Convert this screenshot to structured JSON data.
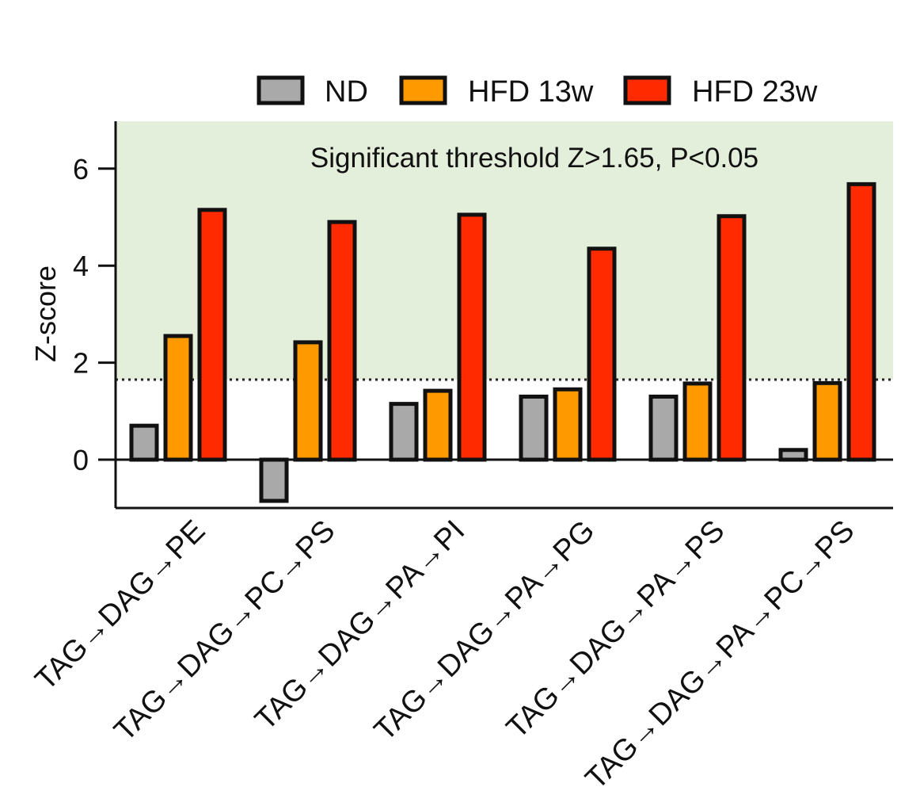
{
  "chart_data": {
    "type": "bar",
    "title": "",
    "xlabel": "",
    "ylabel": "Z-score",
    "ylim": [
      -1,
      7
    ],
    "yticks": [
      0,
      2,
      4,
      6
    ],
    "grid": false,
    "legend_position": "top",
    "categories": [
      "TAG→DAG→PE",
      "TAG→DAG→PC→PS",
      "TAG→DAG→PA→PI",
      "TAG→DAG→PA→PG",
      "TAG→DAG→PA→PS",
      "TAG→DAG→PA→PC→PS"
    ],
    "series": [
      {
        "name": "ND",
        "color": "#a9a9a9",
        "values": [
          0.7,
          -0.85,
          1.15,
          1.3,
          1.3,
          0.2
        ]
      },
      {
        "name": "HFD 13w",
        "color": "#ff9900",
        "values": [
          2.55,
          2.42,
          1.42,
          1.45,
          1.57,
          1.58
        ]
      },
      {
        "name": "HFD 23w",
        "color": "#ff2a00",
        "values": [
          5.15,
          4.9,
          5.05,
          4.35,
          5.02,
          5.68
        ]
      }
    ],
    "threshold": {
      "value": 1.65,
      "label": "Significant threshold Z>1.65, P<0.05",
      "region_color": "#e3eedb"
    }
  }
}
